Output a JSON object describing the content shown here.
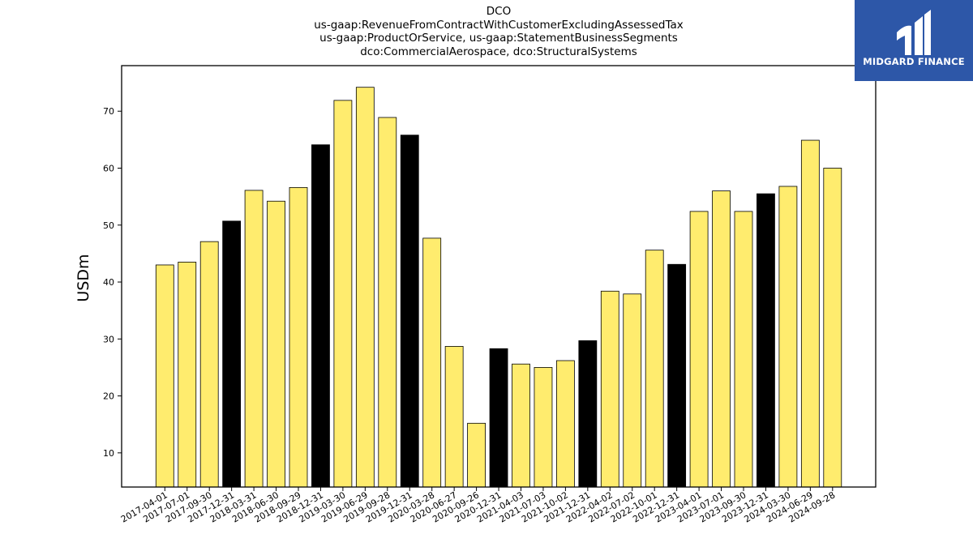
{
  "title_lines": [
    "DCO",
    "us-gaap:RevenueFromContractWithCustomerExcludingAssessedTax",
    "us-gaap:ProductOrService, us-gaap:StatementBusinessSegments",
    "dco:CommercialAerospace, dco:StructuralSystems"
  ],
  "brand": {
    "name": "MIDGARD FINANCE",
    "color": "#2d57a8"
  },
  "chart_data": {
    "type": "bar",
    "title": "DCO\nus-gaap:RevenueFromContractWithCustomerExcludingAssessedTax\nus-gaap:ProductOrService, us-gaap:StatementBusinessSegments\ndco:CommercialAerospace, dco:StructuralSystems",
    "xlabel": "",
    "ylabel": "USDm",
    "ylim": [
      4,
      78
    ],
    "yticks": [
      10,
      20,
      30,
      40,
      50,
      60,
      70
    ],
    "grid": false,
    "colors": {
      "quarter": "#ffec6e",
      "year_end": "#000000",
      "edge": "#000000"
    },
    "categories": [
      "2017-04-01",
      "2017-07-01",
      "2017-09-30",
      "2017-12-31",
      "2018-03-31",
      "2018-06-30",
      "2018-09-29",
      "2018-12-31",
      "2019-03-30",
      "2019-06-29",
      "2019-09-28",
      "2019-12-31",
      "2020-03-28",
      "2020-06-27",
      "2020-09-26",
      "2020-12-31",
      "2021-04-03",
      "2021-07-03",
      "2021-10-02",
      "2021-12-31",
      "2022-04-02",
      "2022-07-02",
      "2022-10-01",
      "2022-12-31",
      "2023-04-01",
      "2023-07-01",
      "2023-09-30",
      "2023-12-31",
      "2024-03-30",
      "2024-06-29",
      "2024-09-28"
    ],
    "values": [
      43.0,
      43.5,
      47.1,
      50.7,
      56.1,
      54.2,
      56.6,
      64.1,
      71.9,
      74.2,
      68.9,
      65.8,
      47.7,
      28.7,
      15.2,
      28.3,
      25.6,
      25.0,
      26.2,
      29.7,
      38.4,
      37.9,
      45.6,
      43.1,
      52.4,
      56.0,
      52.4,
      55.5,
      56.8,
      64.9,
      60.0
    ],
    "highlight": [
      false,
      false,
      false,
      true,
      false,
      false,
      false,
      true,
      false,
      false,
      false,
      true,
      false,
      false,
      false,
      true,
      false,
      false,
      false,
      true,
      false,
      false,
      false,
      true,
      false,
      false,
      false,
      true,
      false,
      false,
      false
    ]
  }
}
